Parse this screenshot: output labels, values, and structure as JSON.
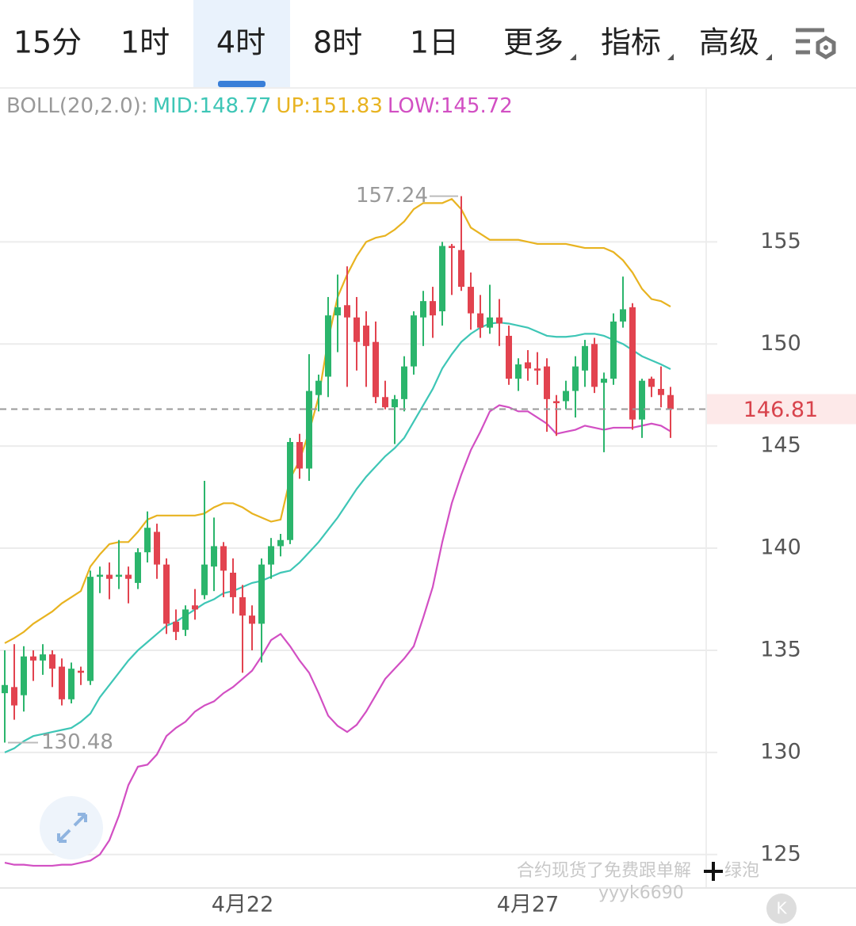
{
  "tabs": {
    "items": [
      "15分",
      "1时",
      "4时",
      "8时",
      "1日",
      "更多",
      "指标",
      "高级"
    ],
    "active": 2
  },
  "chart_data": {
    "type": "candlestick",
    "indicator": "BOLL(20,2.0):",
    "categories": [
      null,
      null,
      null,
      null,
      null,
      null,
      null,
      null,
      null,
      null,
      null,
      null,
      null,
      null,
      null,
      null,
      null,
      null,
      null,
      null,
      null,
      null,
      null,
      null,
      null,
      "4月22",
      null,
      null,
      null,
      null,
      null,
      null,
      null,
      null,
      null,
      null,
      null,
      null,
      null,
      null,
      null,
      null,
      null,
      null,
      null,
      null,
      null,
      null,
      null,
      null,
      null,
      null,
      null,
      null,
      null,
      "4月27",
      null,
      null,
      null,
      null,
      null,
      null,
      null,
      null,
      null,
      null,
      null,
      null,
      null,
      null,
      null
    ],
    "open": [
      132.9,
      133.2,
      132.8,
      134.7,
      134.5,
      134.8,
      134.2,
      132.6,
      134.0,
      133.5,
      138.6,
      138.7,
      138.6,
      138.7,
      138.3,
      139.8,
      140.8,
      139.2,
      136.4,
      136.0,
      137.2,
      137.7,
      139.1,
      140.1,
      138.8,
      137.6,
      136.7,
      136.3,
      139.2,
      140.1,
      140.4,
      145.2,
      143.9,
      147.5,
      148.4,
      151.4,
      151.9,
      151.3,
      150.9,
      150.1,
      147.4,
      146.9,
      147.3,
      148.9,
      151.3,
      152.1,
      151.6,
      154.8,
      154.6,
      152.8,
      151.5,
      150.8,
      151.3,
      150.4,
      148.3,
      149.1,
      148.8,
      148.9,
      147.2,
      147.2,
      147.7,
      148.7,
      150.0,
      148.1,
      148.3,
      151.1,
      151.8,
      146.3,
      148.3,
      147.8,
      147.5
    ],
    "high": [
      135.0,
      135.3,
      135.2,
      135.0,
      135.3,
      135.0,
      134.6,
      134.4,
      134.2,
      138.9,
      139.1,
      139.3,
      140.4,
      139.1,
      140.0,
      141.8,
      141.2,
      139.5,
      137.0,
      137.2,
      138.0,
      143.3,
      141.5,
      140.3,
      139.5,
      138.2,
      137.2,
      139.5,
      140.5,
      140.7,
      145.4,
      145.6,
      149.5,
      148.5,
      152.3,
      153.4,
      153.8,
      152.3,
      151.6,
      151.1,
      148.2,
      147.5,
      149.4,
      151.6,
      152.6,
      152.8,
      155.0,
      154.9,
      157.24,
      153.5,
      152.4,
      152.9,
      152.2,
      150.9,
      149.3,
      149.7,
      149.6,
      149.3,
      147.5,
      148.2,
      149.4,
      150.2,
      150.3,
      148.6,
      151.5,
      153.3,
      152.0,
      148.3,
      148.4,
      148.9,
      147.9
    ],
    "low": [
      130.48,
      131.6,
      132.0,
      133.5,
      133.8,
      133.2,
      132.3,
      132.4,
      133.3,
      133.3,
      137.8,
      137.5,
      138.0,
      137.3,
      138.0,
      139.3,
      138.5,
      135.8,
      135.5,
      135.7,
      136.5,
      137.5,
      137.9,
      137.6,
      136.8,
      133.9,
      135.0,
      134.4,
      138.5,
      139.6,
      140.2,
      143.4,
      143.3,
      146.7,
      147.4,
      149.6,
      147.9,
      148.7,
      147.9,
      147.1,
      146.8,
      145.1,
      146.7,
      148.5,
      149.9,
      150.3,
      150.9,
      152.4,
      152.6,
      150.7,
      150.3,
      150.5,
      149.9,
      148.0,
      147.7,
      148.2,
      148.0,
      145.7,
      145.5,
      146.8,
      146.4,
      147.9,
      147.6,
      144.7,
      148.0,
      150.8,
      145.8,
      145.4,
      147.4,
      146.9,
      145.4
    ],
    "close": [
      133.3,
      132.3,
      134.7,
      134.5,
      134.8,
      134.1,
      132.6,
      134.1,
      133.9,
      138.6,
      138.7,
      138.5,
      138.7,
      138.5,
      139.8,
      141.0,
      139.2,
      136.3,
      135.9,
      137.0,
      137.0,
      139.2,
      140.1,
      138.9,
      137.6,
      136.7,
      136.3,
      139.2,
      140.1,
      140.4,
      145.2,
      143.9,
      147.7,
      148.2,
      151.4,
      151.8,
      151.3,
      150.1,
      149.9,
      147.4,
      146.9,
      147.3,
      148.9,
      151.4,
      152.1,
      151.4,
      154.8,
      154.7,
      152.8,
      151.5,
      150.8,
      151.3,
      151.0,
      148.3,
      149.0,
      148.8,
      148.7,
      147.3,
      147.1,
      147.7,
      148.9,
      149.9,
      147.9,
      148.3,
      151.1,
      151.7,
      146.3,
      148.2,
      147.9,
      147.5,
      146.81
    ],
    "up_color": "#2bb56c",
    "down_color": "#e2434f",
    "series": [
      {
        "name": "MID",
        "label": "MID:148.77",
        "color": "#3ec6b6",
        "values": [
          130.0,
          130.2,
          130.55,
          130.8,
          130.9,
          131.0,
          131.1,
          131.2,
          131.5,
          131.9,
          132.7,
          133.3,
          133.9,
          134.5,
          135.0,
          135.4,
          135.8,
          136.2,
          136.4,
          136.7,
          137.0,
          137.3,
          137.5,
          137.8,
          137.9,
          138.1,
          138.3,
          138.4,
          138.6,
          138.8,
          138.9,
          139.3,
          139.8,
          140.3,
          140.9,
          141.5,
          142.2,
          142.9,
          143.5,
          144.0,
          144.5,
          144.9,
          145.4,
          146.2,
          147.0,
          147.8,
          148.8,
          149.5,
          150.1,
          150.5,
          150.8,
          151.0,
          151.05,
          151.0,
          150.9,
          150.8,
          150.6,
          150.4,
          150.35,
          150.35,
          150.4,
          150.5,
          150.5,
          150.4,
          150.2,
          150.0,
          149.7,
          149.4,
          149.2,
          149.0,
          148.77
        ]
      },
      {
        "name": "UP",
        "label": "UP:151.83",
        "color": "#e8b320",
        "values": [
          135.35,
          135.6,
          135.9,
          136.3,
          136.6,
          136.9,
          137.3,
          137.6,
          137.9,
          139.1,
          139.7,
          140.2,
          140.3,
          140.3,
          140.8,
          141.4,
          141.6,
          141.6,
          141.6,
          141.6,
          141.6,
          141.7,
          142.0,
          142.2,
          142.2,
          142.0,
          141.7,
          141.5,
          141.3,
          141.4,
          143.4,
          144.3,
          145.7,
          147.4,
          150.2,
          152.3,
          153.4,
          154.3,
          155.0,
          155.2,
          155.3,
          155.6,
          156.0,
          156.6,
          156.9,
          156.9,
          156.9,
          157.1,
          156.6,
          155.7,
          155.4,
          155.1,
          155.1,
          155.1,
          155.1,
          155.0,
          154.9,
          154.9,
          154.9,
          154.9,
          154.8,
          154.7,
          154.7,
          154.7,
          154.5,
          154.1,
          153.5,
          152.7,
          152.2,
          152.1,
          151.83
        ]
      },
      {
        "name": "LOW",
        "label": "LOW:145.72",
        "color": "#d24fc3",
        "values": [
          124.6,
          124.5,
          124.5,
          124.45,
          124.45,
          124.45,
          124.5,
          124.5,
          124.6,
          124.7,
          125.0,
          125.7,
          126.9,
          128.4,
          129.3,
          129.4,
          129.9,
          130.8,
          131.2,
          131.5,
          132.0,
          132.3,
          132.5,
          132.9,
          133.2,
          133.6,
          134.0,
          134.7,
          135.5,
          135.8,
          135.2,
          134.5,
          133.9,
          132.9,
          131.8,
          131.3,
          131.0,
          131.35,
          132.0,
          132.8,
          133.6,
          134.1,
          134.6,
          135.2,
          136.6,
          138.1,
          140.3,
          142.2,
          143.6,
          144.8,
          145.7,
          146.7,
          147.0,
          146.9,
          146.7,
          146.7,
          146.4,
          146.1,
          145.6,
          145.7,
          145.8,
          146.0,
          145.9,
          145.8,
          145.9,
          145.9,
          145.9,
          146.0,
          146.1,
          146.0,
          145.72
        ]
      }
    ],
    "max_label": 157.24,
    "max_index": 48,
    "min_label": 130.48,
    "min_index": 0,
    "last_price": 146.81,
    "ylim": [
      123.4,
      162.5
    ],
    "yticks": [
      125,
      130,
      135,
      140,
      145,
      150,
      155
    ],
    "grid": true
  },
  "watermark": {
    "line1": "合约现货了免费跟单解",
    "line1_end": "绿泡",
    "line2": "yyyk6690"
  }
}
